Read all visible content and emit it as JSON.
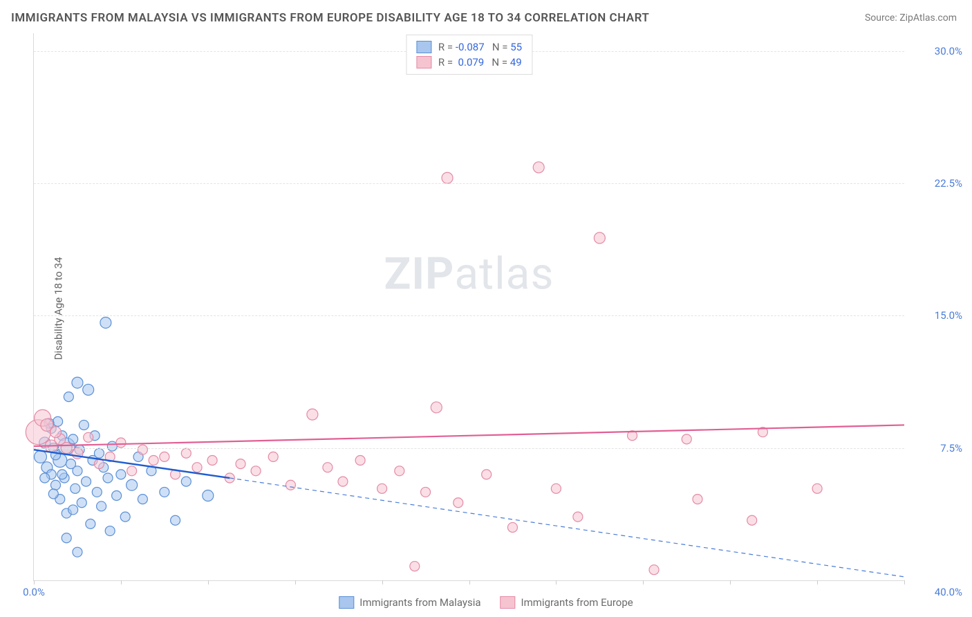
{
  "title": "IMMIGRANTS FROM MALAYSIA VS IMMIGRANTS FROM EUROPE DISABILITY AGE 18 TO 34 CORRELATION CHART",
  "source": "Source: ZipAtlas.com",
  "y_axis_label": "Disability Age 18 to 34",
  "watermark": {
    "bold": "ZIP",
    "rest": "atlas"
  },
  "chart": {
    "type": "scatter-with-trend",
    "background_color": "#ffffff",
    "grid_color": "#e3e3e3",
    "axis_color": "#d9d9d9",
    "xlim": [
      0,
      40
    ],
    "ylim": [
      0,
      31
    ],
    "x_ticks_minor": [
      0,
      4,
      8,
      12,
      16,
      20,
      24,
      28,
      32,
      36,
      40
    ],
    "x_ticks_labeled": [
      {
        "value": 0,
        "label": "0.0%"
      },
      {
        "value": 40,
        "label": "40.0%",
        "position": "right"
      }
    ],
    "y_gridlines": [
      7.5,
      15.0,
      22.5,
      30.0
    ],
    "y_tick_labels": [
      {
        "value": 7.5,
        "label": "7.5%"
      },
      {
        "value": 15.0,
        "label": "15.0%"
      },
      {
        "value": 22.5,
        "label": "22.5%"
      },
      {
        "value": 30.0,
        "label": "30.0%"
      }
    ],
    "series": [
      {
        "name": "Immigrants from Malaysia",
        "fill_color": "#a8c6ee",
        "stroke_color": "#5a8fd6",
        "fill_opacity": 0.55,
        "marker_r_base": 7,
        "trend": {
          "solid": {
            "x1": 0,
            "y1": 7.4,
            "x2": 9,
            "y2": 5.8,
            "color": "#1f5dcf",
            "width": 2.4
          },
          "dashed": {
            "x1": 9,
            "y1": 5.8,
            "x2": 40,
            "y2": 0.2,
            "color": "#4a7cd8",
            "width": 1.2,
            "dash": "6,5"
          }
        },
        "points": [
          {
            "x": 0.3,
            "y": 7.0,
            "r": 9
          },
          {
            "x": 0.5,
            "y": 7.8,
            "r": 8
          },
          {
            "x": 0.6,
            "y": 6.4,
            "r": 8
          },
          {
            "x": 0.8,
            "y": 8.6,
            "r": 7
          },
          {
            "x": 0.8,
            "y": 6.0,
            "r": 7
          },
          {
            "x": 0.9,
            "y": 7.5,
            "r": 7
          },
          {
            "x": 1.0,
            "y": 5.4,
            "r": 7
          },
          {
            "x": 1.1,
            "y": 9.0,
            "r": 7
          },
          {
            "x": 1.2,
            "y": 6.8,
            "r": 10
          },
          {
            "x": 1.2,
            "y": 4.6,
            "r": 7
          },
          {
            "x": 1.3,
            "y": 8.2,
            "r": 7
          },
          {
            "x": 1.4,
            "y": 5.8,
            "r": 7
          },
          {
            "x": 1.5,
            "y": 7.6,
            "r": 12
          },
          {
            "x": 1.5,
            "y": 3.8,
            "r": 7
          },
          {
            "x": 1.6,
            "y": 10.4,
            "r": 7
          },
          {
            "x": 1.7,
            "y": 6.6,
            "r": 7
          },
          {
            "x": 1.8,
            "y": 4.0,
            "r": 7
          },
          {
            "x": 1.8,
            "y": 8.0,
            "r": 7
          },
          {
            "x": 1.9,
            "y": 5.2,
            "r": 7
          },
          {
            "x": 2.0,
            "y": 11.2,
            "r": 8
          },
          {
            "x": 2.0,
            "y": 6.2,
            "r": 7
          },
          {
            "x": 2.1,
            "y": 7.4,
            "r": 7
          },
          {
            "x": 2.2,
            "y": 4.4,
            "r": 7
          },
          {
            "x": 2.3,
            "y": 8.8,
            "r": 7
          },
          {
            "x": 2.4,
            "y": 5.6,
            "r": 7
          },
          {
            "x": 2.5,
            "y": 10.8,
            "r": 8
          },
          {
            "x": 2.6,
            "y": 3.2,
            "r": 7
          },
          {
            "x": 2.7,
            "y": 6.8,
            "r": 7
          },
          {
            "x": 2.8,
            "y": 8.2,
            "r": 7
          },
          {
            "x": 2.9,
            "y": 5.0,
            "r": 7
          },
          {
            "x": 3.0,
            "y": 7.2,
            "r": 7
          },
          {
            "x": 3.1,
            "y": 4.2,
            "r": 7
          },
          {
            "x": 3.2,
            "y": 6.4,
            "r": 7
          },
          {
            "x": 3.3,
            "y": 14.6,
            "r": 8
          },
          {
            "x": 3.4,
            "y": 5.8,
            "r": 7
          },
          {
            "x": 3.5,
            "y": 2.8,
            "r": 7
          },
          {
            "x": 3.6,
            "y": 7.6,
            "r": 7
          },
          {
            "x": 3.8,
            "y": 4.8,
            "r": 7
          },
          {
            "x": 4.0,
            "y": 6.0,
            "r": 7
          },
          {
            "x": 4.2,
            "y": 3.6,
            "r": 7
          },
          {
            "x": 4.5,
            "y": 5.4,
            "r": 8
          },
          {
            "x": 4.8,
            "y": 7.0,
            "r": 7
          },
          {
            "x": 5.0,
            "y": 4.6,
            "r": 7
          },
          {
            "x": 5.4,
            "y": 6.2,
            "r": 7
          },
          {
            "x": 6.0,
            "y": 5.0,
            "r": 7
          },
          {
            "x": 6.5,
            "y": 3.4,
            "r": 7
          },
          {
            "x": 7.0,
            "y": 5.6,
            "r": 7
          },
          {
            "x": 8.0,
            "y": 4.8,
            "r": 8
          },
          {
            "x": 2.0,
            "y": 1.6,
            "r": 7
          },
          {
            "x": 1.5,
            "y": 2.4,
            "r": 7
          },
          {
            "x": 0.7,
            "y": 8.9,
            "r": 7
          },
          {
            "x": 1.0,
            "y": 7.1,
            "r": 7
          },
          {
            "x": 0.5,
            "y": 5.8,
            "r": 7
          },
          {
            "x": 0.9,
            "y": 4.9,
            "r": 7
          },
          {
            "x": 1.3,
            "y": 6.0,
            "r": 7
          }
        ]
      },
      {
        "name": "Immigrants from Europe",
        "fill_color": "#f6c4d1",
        "stroke_color": "#e48aa5",
        "fill_opacity": 0.55,
        "marker_r_base": 7,
        "trend": {
          "solid": {
            "x1": 0,
            "y1": 7.6,
            "x2": 40,
            "y2": 8.8,
            "color": "#e15f93",
            "width": 2.2
          }
        },
        "points": [
          {
            "x": 0.2,
            "y": 8.4,
            "r": 18
          },
          {
            "x": 0.4,
            "y": 9.2,
            "r": 12
          },
          {
            "x": 0.8,
            "y": 7.6,
            "r": 9
          },
          {
            "x": 1.2,
            "y": 8.0,
            "r": 8
          },
          {
            "x": 2.0,
            "y": 7.2,
            "r": 8
          },
          {
            "x": 2.5,
            "y": 8.1,
            "r": 7
          },
          {
            "x": 3.0,
            "y": 6.6,
            "r": 7
          },
          {
            "x": 3.5,
            "y": 7.0,
            "r": 7
          },
          {
            "x": 4.0,
            "y": 7.8,
            "r": 7
          },
          {
            "x": 4.5,
            "y": 6.2,
            "r": 7
          },
          {
            "x": 5.0,
            "y": 7.4,
            "r": 7
          },
          {
            "x": 5.5,
            "y": 6.8,
            "r": 7
          },
          {
            "x": 6.0,
            "y": 7.0,
            "r": 7
          },
          {
            "x": 6.5,
            "y": 6.0,
            "r": 7
          },
          {
            "x": 7.0,
            "y": 7.2,
            "r": 7
          },
          {
            "x": 7.5,
            "y": 6.4,
            "r": 7
          },
          {
            "x": 8.2,
            "y": 6.8,
            "r": 7
          },
          {
            "x": 9.0,
            "y": 5.8,
            "r": 7
          },
          {
            "x": 9.5,
            "y": 6.6,
            "r": 7
          },
          {
            "x": 10.2,
            "y": 6.2,
            "r": 7
          },
          {
            "x": 11.0,
            "y": 7.0,
            "r": 7
          },
          {
            "x": 11.8,
            "y": 5.4,
            "r": 7
          },
          {
            "x": 12.8,
            "y": 9.4,
            "r": 8
          },
          {
            "x": 13.5,
            "y": 6.4,
            "r": 7
          },
          {
            "x": 14.2,
            "y": 5.6,
            "r": 7
          },
          {
            "x": 15.0,
            "y": 6.8,
            "r": 7
          },
          {
            "x": 16.0,
            "y": 5.2,
            "r": 7
          },
          {
            "x": 16.8,
            "y": 6.2,
            "r": 7
          },
          {
            "x": 17.5,
            "y": 0.8,
            "r": 7
          },
          {
            "x": 18.5,
            "y": 9.8,
            "r": 8
          },
          {
            "x": 18.0,
            "y": 5.0,
            "r": 7
          },
          {
            "x": 19.0,
            "y": 22.8,
            "r": 8
          },
          {
            "x": 19.5,
            "y": 4.4,
            "r": 7
          },
          {
            "x": 20.8,
            "y": 6.0,
            "r": 7
          },
          {
            "x": 22.0,
            "y": 3.0,
            "r": 7
          },
          {
            "x": 23.2,
            "y": 23.4,
            "r": 8
          },
          {
            "x": 24.0,
            "y": 5.2,
            "r": 7
          },
          {
            "x": 25.0,
            "y": 3.6,
            "r": 7
          },
          {
            "x": 26.0,
            "y": 19.4,
            "r": 8
          },
          {
            "x": 27.5,
            "y": 8.2,
            "r": 7
          },
          {
            "x": 28.5,
            "y": 0.6,
            "r": 7
          },
          {
            "x": 30.0,
            "y": 8.0,
            "r": 7
          },
          {
            "x": 30.5,
            "y": 4.6,
            "r": 7
          },
          {
            "x": 33.0,
            "y": 3.4,
            "r": 7
          },
          {
            "x": 33.5,
            "y": 8.4,
            "r": 7
          },
          {
            "x": 36.0,
            "y": 5.2,
            "r": 7
          },
          {
            "x": 0.6,
            "y": 8.8,
            "r": 9
          },
          {
            "x": 1.5,
            "y": 7.5,
            "r": 8
          },
          {
            "x": 1.0,
            "y": 8.4,
            "r": 8
          }
        ]
      }
    ]
  },
  "legend_top": {
    "rows": [
      {
        "swatch_fill": "#a8c6ee",
        "swatch_stroke": "#5a8fd6",
        "r_label": "R = ",
        "r_value": "-0.087",
        "n_label": "   N = ",
        "n_value": "55"
      },
      {
        "swatch_fill": "#f6c4d1",
        "swatch_stroke": "#e48aa5",
        "r_label": "R = ",
        "r_value": " 0.079",
        "n_label": "   N = ",
        "n_value": "49"
      }
    ]
  },
  "legend_bottom": {
    "items": [
      {
        "swatch_fill": "#a8c6ee",
        "swatch_stroke": "#5a8fd6",
        "label": "Immigrants from Malaysia"
      },
      {
        "swatch_fill": "#f6c4d1",
        "swatch_stroke": "#e48aa5",
        "label": "Immigrants from Europe"
      }
    ]
  }
}
